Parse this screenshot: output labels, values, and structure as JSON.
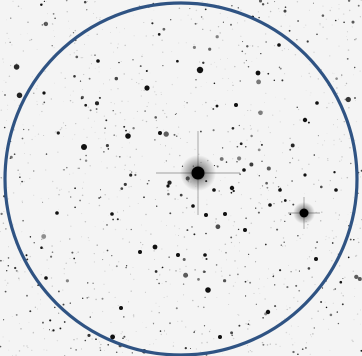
{
  "image": {
    "subject": "star-field",
    "style": "inverted-negative",
    "background_color": "#f4f4f4",
    "star_color": "#111111",
    "circle_color": "#2f5383"
  }
}
